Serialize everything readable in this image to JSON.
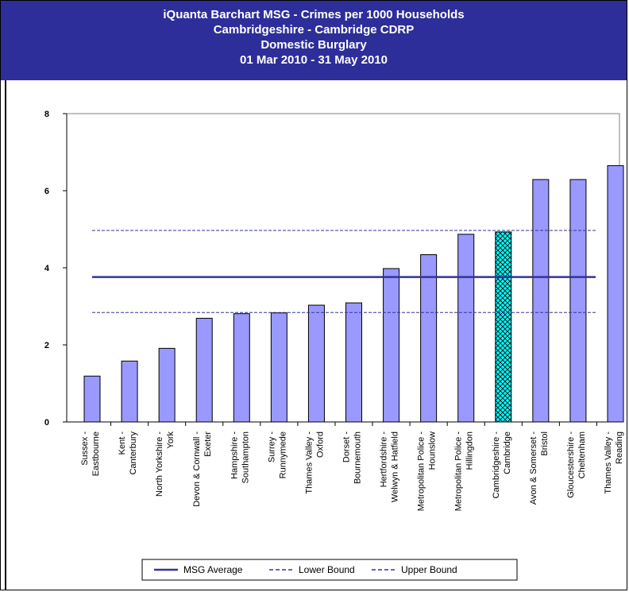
{
  "header": {
    "title_line1": "iQuanta Barchart MSG - Crimes per 1000 Households",
    "title_line2": "Cambridgeshire - Cambridge CDRP",
    "title_line3": "Domestic Burglary",
    "title_line4": "01 Mar 2010 - 31 May 2010"
  },
  "colors": {
    "header_bg": "#2e2e9a",
    "bar_fill": "#9999ff",
    "highlight_fill": "#00ffff",
    "line_color": "#333399"
  },
  "chart_data": {
    "type": "bar",
    "title": "iQuanta Barchart MSG - Crimes per 1000 Households",
    "xlabel": "",
    "ylabel": "",
    "ylim": [
      0,
      8
    ],
    "yticks": [
      0,
      2,
      4,
      6,
      8
    ],
    "grid": false,
    "categories": [
      [
        "Sussex -",
        "Eastbourne"
      ],
      [
        "Kent -",
        "Canterbury"
      ],
      [
        "North Yorkshire -",
        "York"
      ],
      [
        "Devon & Cornwall -",
        "Exeter"
      ],
      [
        "Hampshire -",
        "Southampton"
      ],
      [
        "Surrey -",
        "Runnymede"
      ],
      [
        "Thames Valley -",
        "Oxford"
      ],
      [
        "Dorset -",
        "Bournemouth"
      ],
      [
        "Hertfordshire -",
        "Welwyn & Hatfield"
      ],
      [
        "Metropolitan Police -",
        "Hounslow"
      ],
      [
        "Metropolitan Police -",
        "Hillingdon"
      ],
      [
        "Cambridgeshire -",
        "Cambridge"
      ],
      [
        "Avon & Somerset -",
        "Bristol"
      ],
      [
        "Gloucestershire -",
        "Cheltenham"
      ],
      [
        "Thames Valley -",
        "Reading"
      ]
    ],
    "values": [
      1.19,
      1.58,
      1.91,
      2.69,
      2.81,
      2.83,
      3.03,
      3.09,
      3.98,
      4.34,
      4.87,
      4.93,
      6.29,
      6.29,
      6.65
    ],
    "highlight_index": 11,
    "lines": [
      {
        "name": "MSG Average",
        "value": 3.76,
        "style": "solid"
      },
      {
        "name": "Lower Bound",
        "value": 2.84,
        "style": "dashed"
      },
      {
        "name": "Upper Bound",
        "value": 4.97,
        "style": "dashed"
      }
    ],
    "legend_position": "bottom"
  }
}
